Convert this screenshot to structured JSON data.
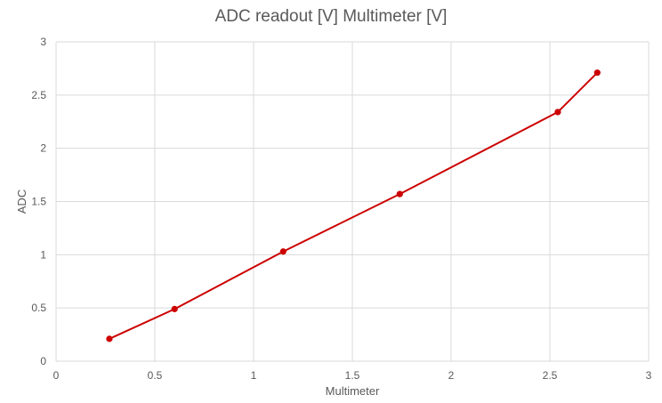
{
  "chart_data": {
    "type": "scatter",
    "title": "ADC readout [V] Multimeter [V]",
    "xlabel": "Multimeter",
    "ylabel": "ADC",
    "xlim": [
      0,
      3
    ],
    "ylim": [
      0,
      3
    ],
    "x_ticks": [
      "0",
      "0.5",
      "1",
      "1.5",
      "2",
      "2.5",
      "3"
    ],
    "y_ticks": [
      "0",
      "0.5",
      "1",
      "1.5",
      "2",
      "2.5",
      "3"
    ],
    "grid": true,
    "legend": "none",
    "series": [
      {
        "color": "#cc0000",
        "line": true,
        "markers": true,
        "x": [
          0.27,
          0.6,
          1.15,
          1.74,
          2.54,
          2.74
        ],
        "y": [
          0.21,
          0.49,
          1.03,
          1.57,
          2.34,
          2.71
        ]
      }
    ]
  }
}
